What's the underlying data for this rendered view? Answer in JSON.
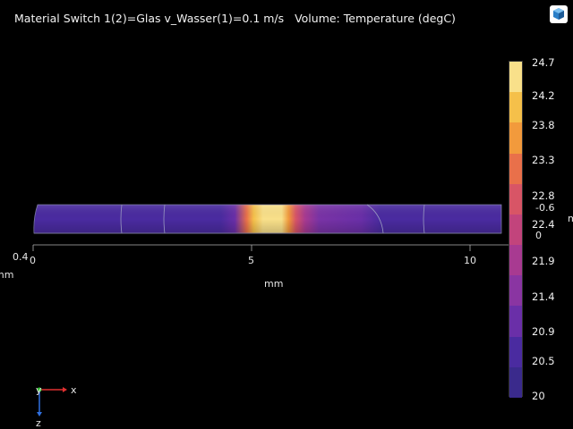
{
  "plot_title": "Material Switch 1(2)=Glas v_Wasser(1)=0.1 m/s   Volume: Temperature (degC)",
  "axis": {
    "x_ticks": [
      "0",
      "5",
      "10"
    ],
    "x_unit": "mm",
    "z_ticks": [
      "0.4"
    ],
    "z_unit_partial": "mm",
    "right_ticks": [
      "-0.6",
      "0"
    ],
    "right_unit_partial": "m"
  },
  "triad": {
    "x": "x",
    "y": "y",
    "z": "z"
  },
  "colorbar": {
    "labels": [
      "24.7",
      "24.2",
      "23.8",
      "23.3",
      "22.8",
      "22.4",
      "21.9",
      "21.4",
      "20.9",
      "20.5",
      "20"
    ],
    "colors": [
      "#f9e08a",
      "#f5c04a",
      "#f29a3c",
      "#e9704a",
      "#d85566",
      "#c2447c",
      "#a83a91",
      "#8a35a2",
      "#6a2fa8",
      "#4a2ba0",
      "#3a2a8c"
    ]
  },
  "logo_icon": "comsol-cube-icon",
  "triad_icon": "axis-triad-icon"
}
